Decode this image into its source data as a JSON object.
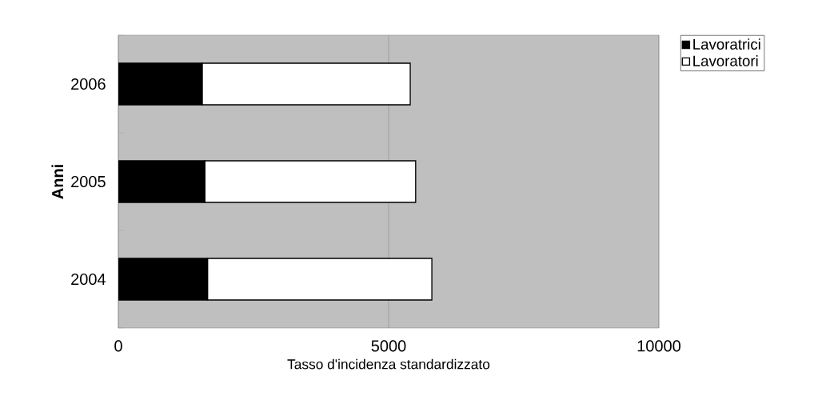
{
  "chart_data": {
    "type": "bar",
    "orientation": "horizontal",
    "stacked": true,
    "xlabel": "Tasso d'incidenza standardizzato",
    "ylabel": "Anni",
    "categories": [
      "2006",
      "2005",
      "2004"
    ],
    "series": [
      {
        "name": "Lavoratrici",
        "color": "#000000",
        "values": [
          1550,
          1600,
          1650
        ]
      },
      {
        "name": "Lavoratori",
        "color": "#ffffff",
        "values": [
          3850,
          3900,
          4150
        ]
      }
    ],
    "xlim": [
      0,
      10000
    ],
    "xticks": [
      0,
      5000,
      10000
    ],
    "grid": "x",
    "legend": "top right"
  }
}
